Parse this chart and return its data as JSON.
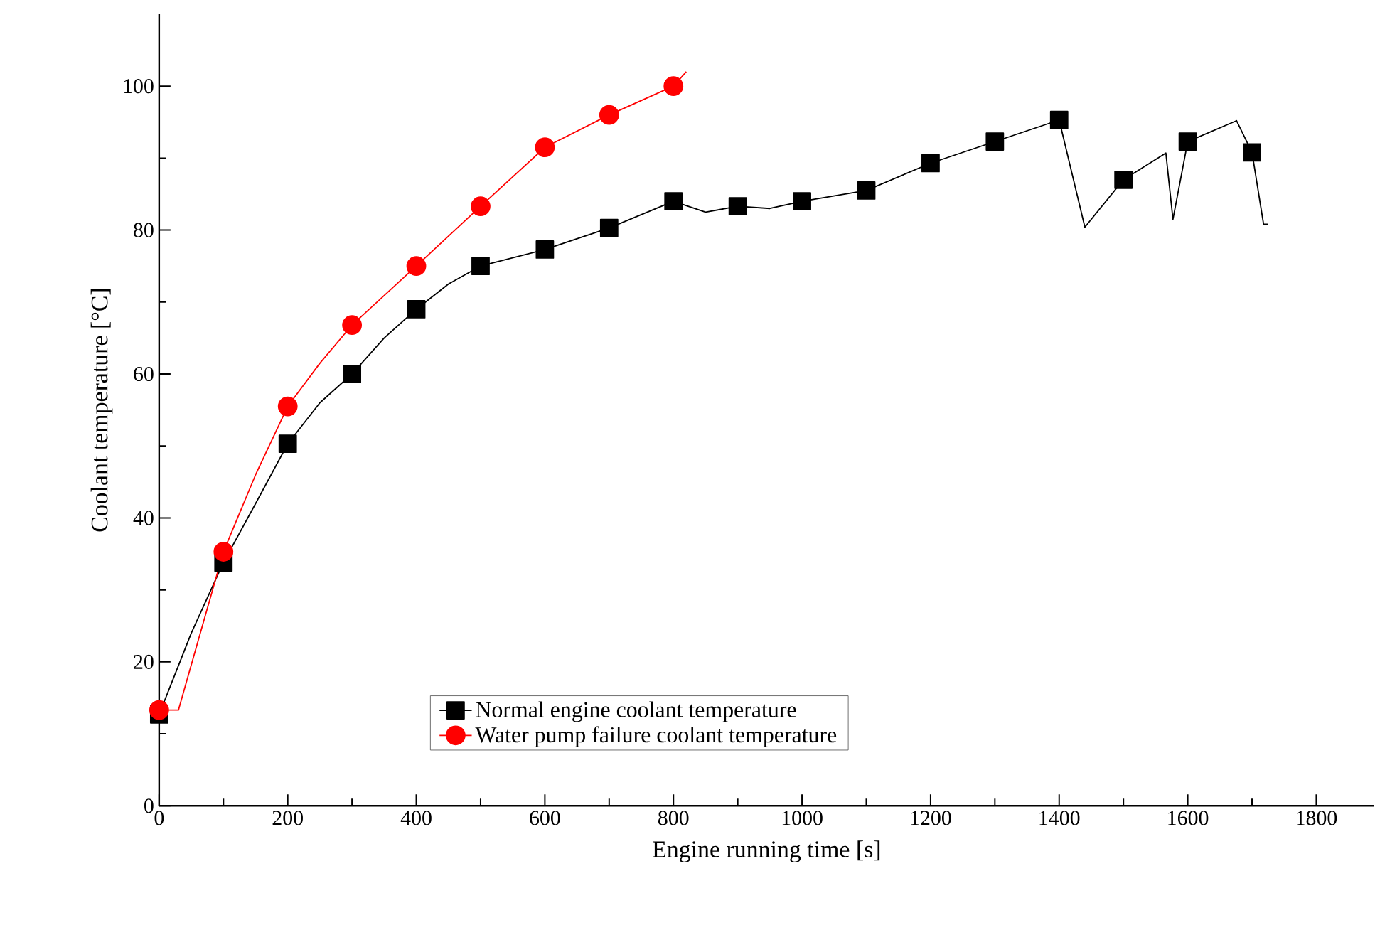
{
  "chart_data": {
    "type": "line",
    "xlabel": "Engine running time [s]",
    "ylabel": "Coolant temperature [°C]",
    "xlim": [
      0,
      1890
    ],
    "ylim": [
      0,
      110
    ],
    "xticks": [
      0,
      200,
      400,
      600,
      800,
      1000,
      1200,
      1400,
      1600,
      1800
    ],
    "yticks": [
      0,
      20,
      40,
      60,
      80,
      100
    ],
    "grid": false,
    "legend": "bottom",
    "series": [
      {
        "name": "Normal engine coolant temperature",
        "color": "#000000",
        "marker": "square",
        "x": [
          0,
          50,
          100,
          150,
          200,
          250,
          300,
          350,
          400,
          450,
          500,
          600,
          700,
          800,
          850,
          900,
          950,
          1000,
          1100,
          1200,
          1300,
          1400,
          1440,
          1500,
          1566,
          1577,
          1600,
          1676,
          1700,
          1718,
          1725
        ],
        "values": [
          12.7,
          24,
          33.8,
          42,
          50.3,
          56,
          60,
          65,
          69,
          72.5,
          75,
          77.3,
          80.3,
          84,
          82.5,
          83.3,
          83,
          84,
          85.5,
          89.3,
          92.3,
          95.3,
          80.4,
          87,
          90.7,
          81.5,
          92.3,
          95.2,
          90.8,
          80.8,
          80.8
        ]
      },
      {
        "name": "Water pump failure coolant temperature",
        "color": "#ff0000",
        "marker": "circle",
        "x": [
          0,
          30,
          100,
          150,
          200,
          250,
          300,
          400,
          500,
          600,
          700,
          800,
          820
        ],
        "values": [
          13.3,
          13.3,
          35.3,
          46,
          55.5,
          61.5,
          66.8,
          75,
          83.3,
          91.5,
          96,
          100,
          102
        ]
      }
    ]
  }
}
